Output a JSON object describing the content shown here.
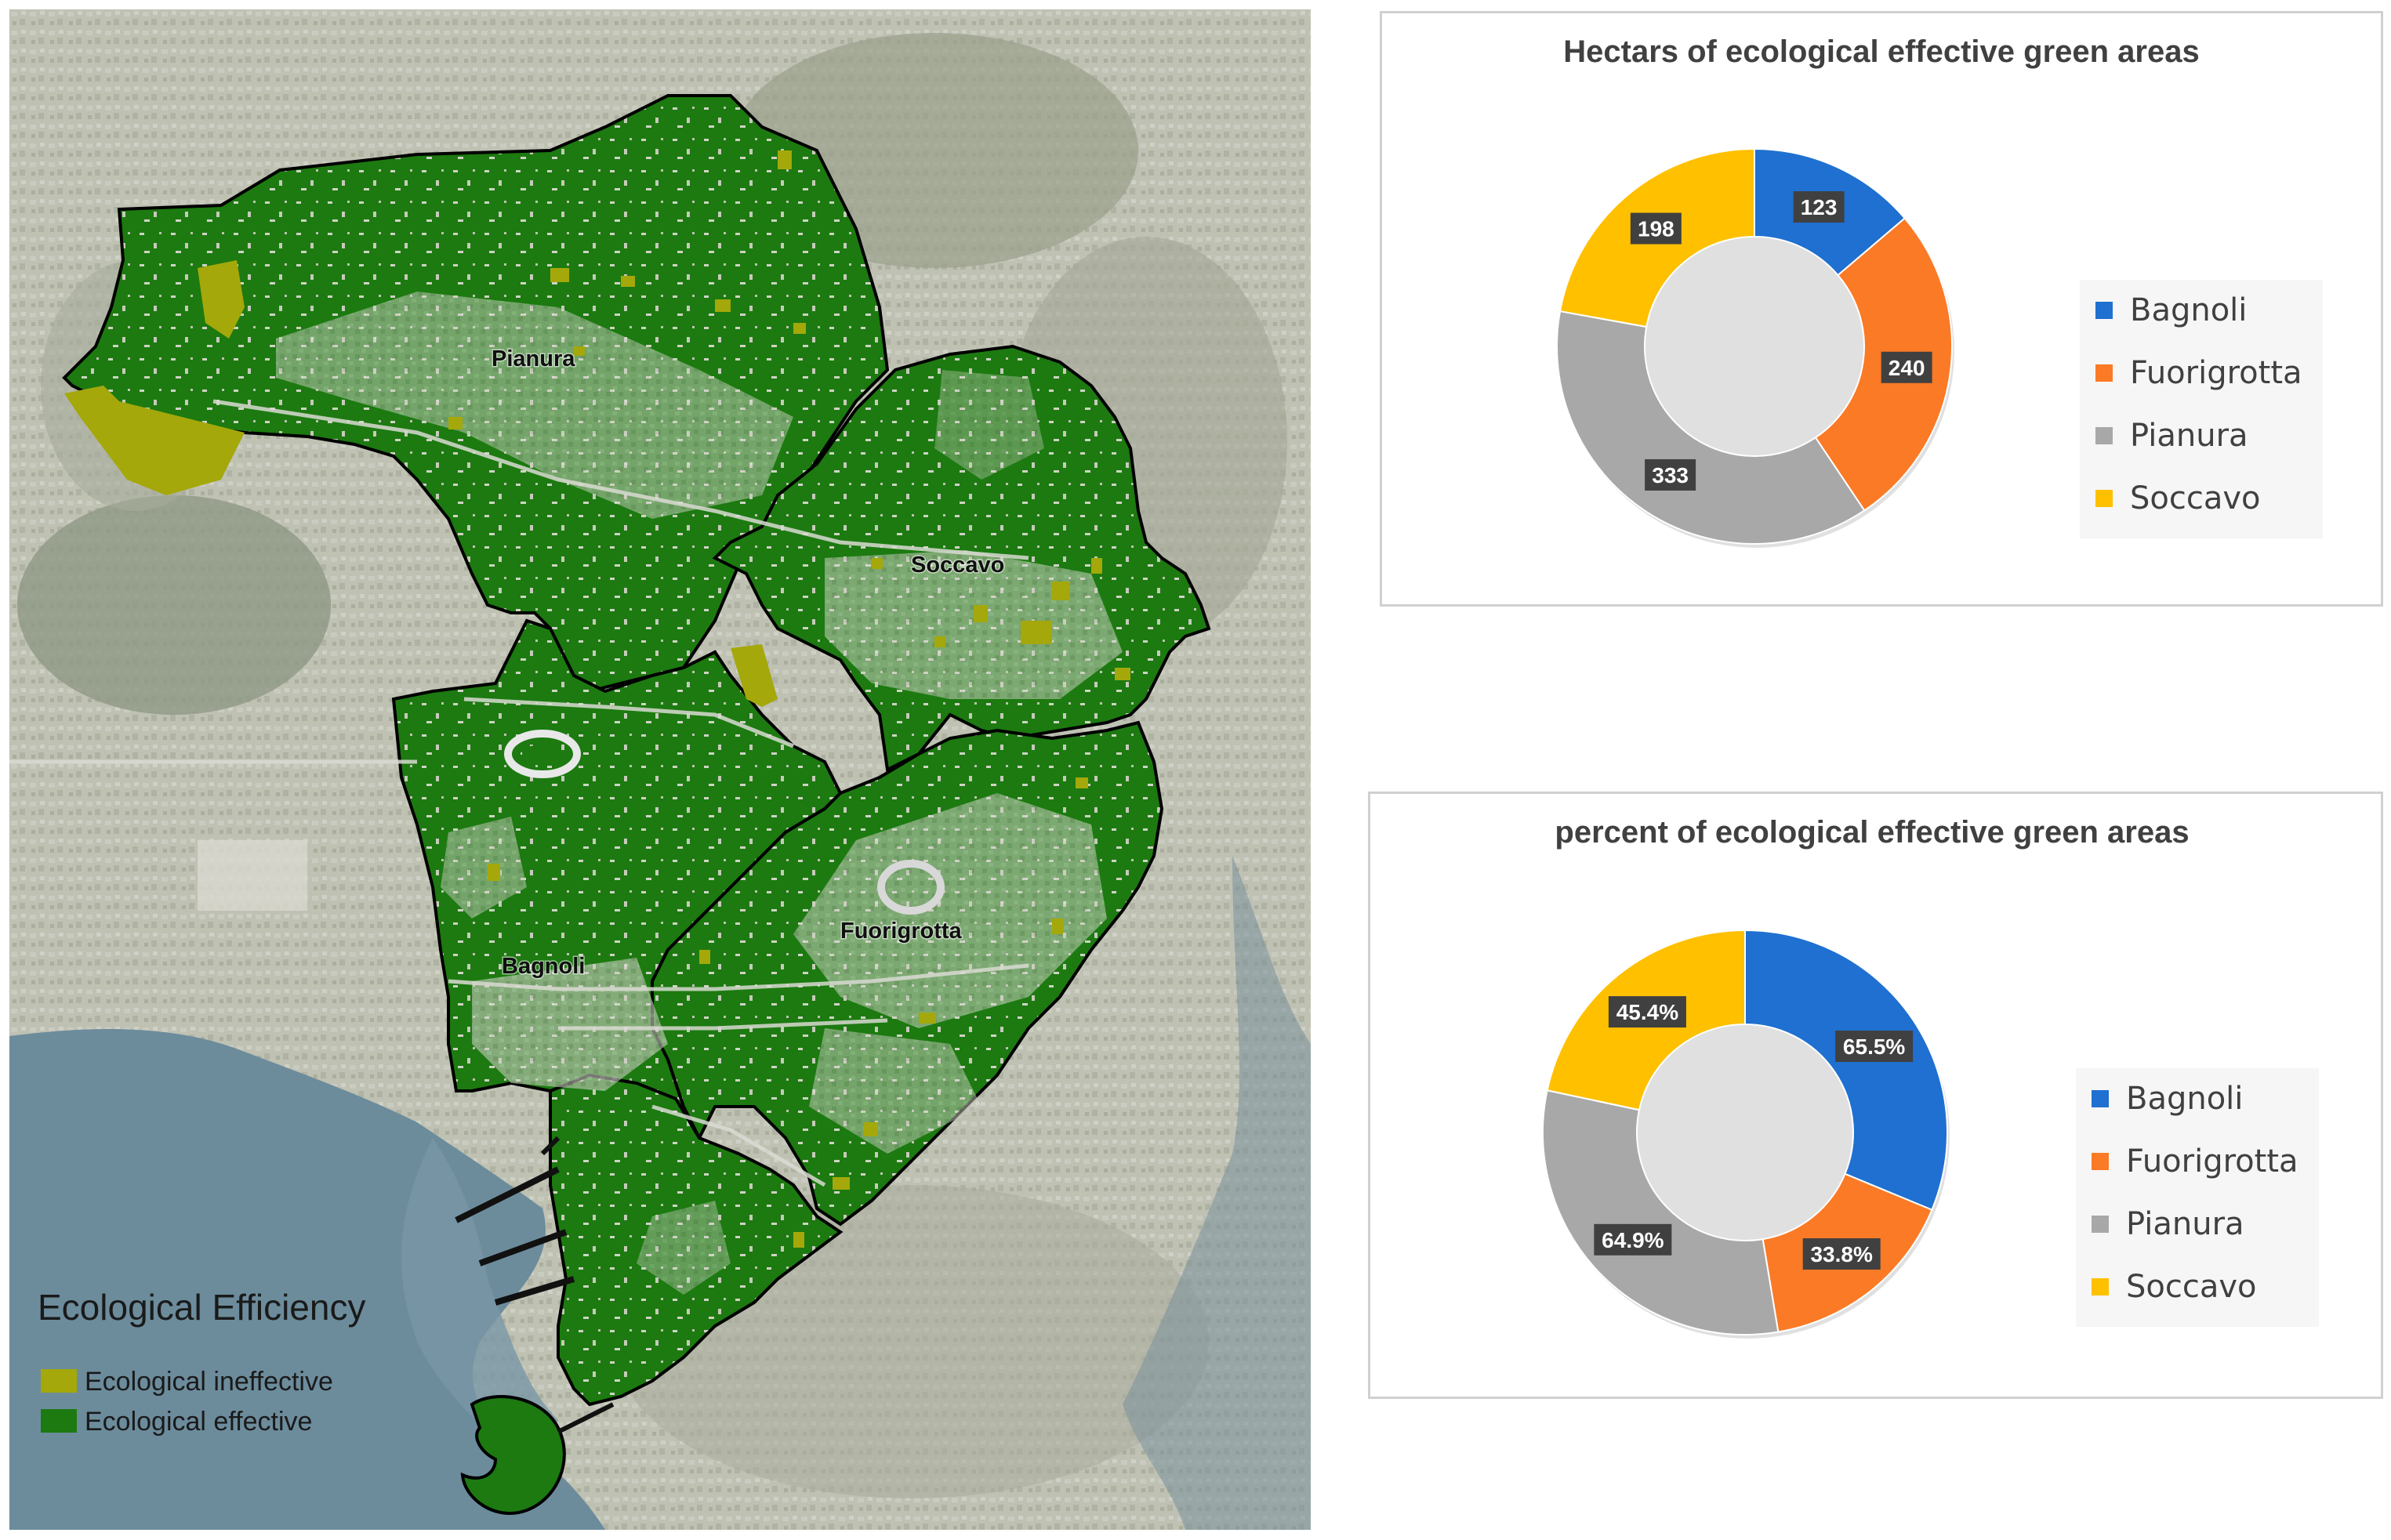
{
  "map": {
    "districts": [
      {
        "id": "pianura",
        "label": "Pianura"
      },
      {
        "id": "soccavo",
        "label": "Soccavo"
      },
      {
        "id": "bagnoli",
        "label": "Bagnoli"
      },
      {
        "id": "fuorigrotta",
        "label": "Fuorigrotta"
      }
    ],
    "legend": {
      "title": "Ecological Efficiency",
      "items": [
        {
          "label": "Ecological ineffective",
          "color": "#a4a80a"
        },
        {
          "label": "Ecological effective",
          "color": "#1c7a10"
        }
      ]
    },
    "colors": {
      "effective": "#1c7a10",
      "ineffective": "#a4a80a",
      "boundary": "#000000",
      "sea": "#6e8fa0",
      "land": "#b9bbae"
    }
  },
  "chart_data": [
    {
      "type": "donut",
      "title": "Hectars of ecological effective green areas",
      "categories": [
        "Bagnoli",
        "Fuorigrotta",
        "Pianura",
        "Soccavo"
      ],
      "values": [
        123,
        240,
        333,
        198
      ],
      "value_labels": [
        "123",
        "240",
        "333",
        "198"
      ],
      "colors": [
        "#1f70d0",
        "#fb7a25",
        "#a8a8a8",
        "#ffc000"
      ],
      "legend_position": "right"
    },
    {
      "type": "donut",
      "title": "percent of ecological effective green areas",
      "categories": [
        "Bagnoli",
        "Fuorigrotta",
        "Pianura",
        "Soccavo"
      ],
      "values": [
        65.5,
        33.8,
        64.9,
        45.4
      ],
      "value_labels": [
        "65.5%",
        "33.8%",
        "64.9%",
        "45.4%"
      ],
      "colors": [
        "#1f70d0",
        "#fb7a25",
        "#a8a8a8",
        "#ffc000"
      ],
      "legend_position": "right"
    }
  ]
}
